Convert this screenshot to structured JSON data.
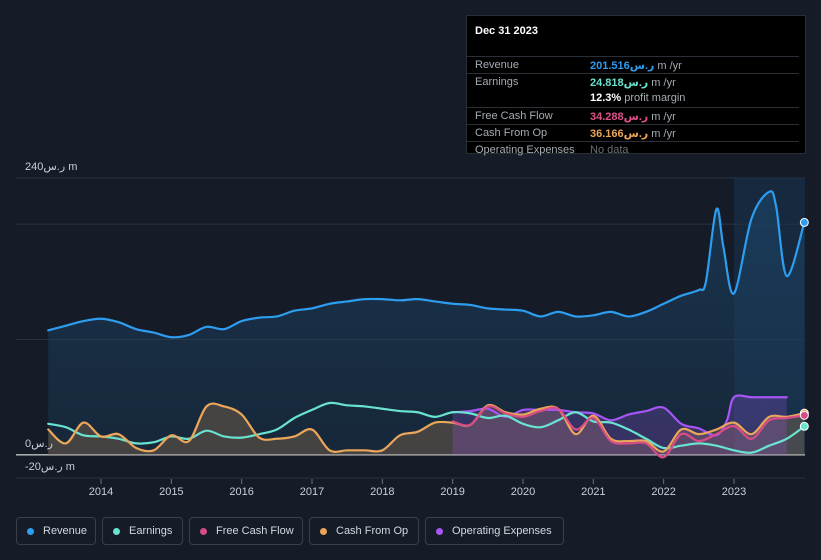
{
  "tooltip": {
    "date": "Dec 31 2023",
    "rows": [
      {
        "label": "Revenue",
        "value": "201.516ر.س",
        "unit": "m /yr",
        "color": "#2e9df0"
      },
      {
        "label": "Earnings",
        "value": "24.818ر.س",
        "unit": "m /yr",
        "color": "#69e3cf"
      },
      {
        "label": "",
        "value": "12.3%",
        "unit": "profit margin",
        "color": "#ffffff"
      },
      {
        "label": "Free Cash Flow",
        "value": "34.288ر.س",
        "unit": "m /yr",
        "color": "#e0508a"
      },
      {
        "label": "Cash From Op",
        "value": "36.166ر.س",
        "unit": "m /yr",
        "color": "#eba65a"
      },
      {
        "label": "Operating Expenses",
        "value": "No data",
        "unit": "",
        "color": "#6b7178"
      }
    ]
  },
  "legend": [
    {
      "label": "Revenue",
      "color": "#2e9df0"
    },
    {
      "label": "Earnings",
      "color": "#69e3cf"
    },
    {
      "label": "Free Cash Flow",
      "color": "#d94d86"
    },
    {
      "label": "Cash From Op",
      "color": "#eba65a"
    },
    {
      "label": "Operating Expenses",
      "color": "#a855f7"
    }
  ],
  "chart_data": {
    "type": "line",
    "title": "",
    "y_labels": {
      "top": "240ر.س m",
      "zero": "0ر.س",
      "bottom": "-20ر.س m"
    },
    "ylim": [
      -20,
      240
    ],
    "xlim": [
      2013.25,
      2024.0
    ],
    "x_ticks": [
      "2014",
      "2015",
      "2016",
      "2017",
      "2018",
      "2019",
      "2020",
      "2021",
      "2022",
      "2023"
    ],
    "forecast_start": 2023.0,
    "series": [
      {
        "name": "Revenue",
        "color": "#2e9df0",
        "fill": true,
        "from": 2013.25,
        "points": [
          [
            2013.25,
            108
          ],
          [
            2013.5,
            112
          ],
          [
            2013.75,
            116
          ],
          [
            2014.0,
            118
          ],
          [
            2014.25,
            115
          ],
          [
            2014.5,
            109
          ],
          [
            2014.75,
            106
          ],
          [
            2015.0,
            102
          ],
          [
            2015.25,
            104
          ],
          [
            2015.5,
            111
          ],
          [
            2015.75,
            109
          ],
          [
            2016.0,
            116
          ],
          [
            2016.25,
            119
          ],
          [
            2016.5,
            120
          ],
          [
            2016.75,
            125
          ],
          [
            2017.0,
            127
          ],
          [
            2017.25,
            131
          ],
          [
            2017.5,
            133
          ],
          [
            2017.75,
            135
          ],
          [
            2018.0,
            135
          ],
          [
            2018.25,
            134
          ],
          [
            2018.5,
            135
          ],
          [
            2018.75,
            133
          ],
          [
            2019.0,
            131
          ],
          [
            2019.25,
            130
          ],
          [
            2019.5,
            127
          ],
          [
            2019.75,
            126
          ],
          [
            2020.0,
            125
          ],
          [
            2020.25,
            120
          ],
          [
            2020.5,
            124
          ],
          [
            2020.75,
            120
          ],
          [
            2021.0,
            121
          ],
          [
            2021.25,
            124
          ],
          [
            2021.5,
            120
          ],
          [
            2021.75,
            124
          ],
          [
            2022.0,
            131
          ],
          [
            2022.25,
            138
          ],
          [
            2022.5,
            143
          ],
          [
            2022.6,
            150
          ],
          [
            2022.75,
            213
          ],
          [
            2022.85,
            180
          ],
          [
            2023.0,
            140
          ],
          [
            2023.25,
            205
          ],
          [
            2023.5,
            228
          ],
          [
            2023.6,
            215
          ],
          [
            2023.75,
            155
          ],
          [
            2024.0,
            201.5
          ]
        ]
      },
      {
        "name": "Earnings",
        "color": "#69e3cf",
        "fill": false,
        "from": 2013.25,
        "points": [
          [
            2013.25,
            27
          ],
          [
            2013.5,
            24
          ],
          [
            2013.75,
            17
          ],
          [
            2014.0,
            16
          ],
          [
            2014.25,
            14
          ],
          [
            2014.5,
            10
          ],
          [
            2014.75,
            11
          ],
          [
            2015.0,
            16
          ],
          [
            2015.25,
            14
          ],
          [
            2015.5,
            21
          ],
          [
            2015.75,
            16
          ],
          [
            2016.0,
            15
          ],
          [
            2016.25,
            18
          ],
          [
            2016.5,
            22
          ],
          [
            2016.75,
            32
          ],
          [
            2017.0,
            39
          ],
          [
            2017.25,
            45
          ],
          [
            2017.5,
            43
          ],
          [
            2017.75,
            42
          ],
          [
            2018.0,
            40
          ],
          [
            2018.25,
            38
          ],
          [
            2018.5,
            37
          ],
          [
            2018.75,
            33
          ],
          [
            2019.0,
            37
          ],
          [
            2019.25,
            36
          ],
          [
            2019.5,
            32
          ],
          [
            2019.75,
            34
          ],
          [
            2020.0,
            27
          ],
          [
            2020.25,
            24
          ],
          [
            2020.5,
            30
          ],
          [
            2020.75,
            37
          ],
          [
            2021.0,
            29
          ],
          [
            2021.25,
            28
          ],
          [
            2021.5,
            22
          ],
          [
            2021.75,
            14
          ],
          [
            2022.0,
            6
          ],
          [
            2022.25,
            8
          ],
          [
            2022.5,
            10
          ],
          [
            2022.75,
            8
          ],
          [
            2023.0,
            4
          ],
          [
            2023.25,
            2
          ],
          [
            2023.5,
            8
          ],
          [
            2023.75,
            14
          ],
          [
            2024.0,
            24.8
          ]
        ]
      },
      {
        "name": "Free Cash Flow",
        "color": "#d94d86",
        "fill": false,
        "from": 2019.0,
        "points": [
          [
            2019.0,
            29
          ],
          [
            2019.25,
            26
          ],
          [
            2019.5,
            42
          ],
          [
            2019.75,
            36
          ],
          [
            2020.0,
            33
          ],
          [
            2020.25,
            38
          ],
          [
            2020.5,
            40
          ],
          [
            2020.75,
            22
          ],
          [
            2021.0,
            32
          ],
          [
            2021.25,
            12
          ],
          [
            2021.5,
            10
          ],
          [
            2021.75,
            10
          ],
          [
            2022.0,
            -2
          ],
          [
            2022.25,
            18
          ],
          [
            2022.5,
            12
          ],
          [
            2022.75,
            18
          ],
          [
            2023.0,
            25
          ],
          [
            2023.25,
            14
          ],
          [
            2023.5,
            30
          ],
          [
            2023.75,
            32
          ],
          [
            2024.0,
            34.3
          ]
        ]
      },
      {
        "name": "Cash From Op",
        "color": "#eba65a",
        "fill": true,
        "from": 2013.25,
        "points": [
          [
            2013.25,
            22
          ],
          [
            2013.5,
            10
          ],
          [
            2013.75,
            28
          ],
          [
            2014.0,
            16
          ],
          [
            2014.25,
            18
          ],
          [
            2014.5,
            6
          ],
          [
            2014.75,
            4
          ],
          [
            2015.0,
            17
          ],
          [
            2015.25,
            12
          ],
          [
            2015.5,
            42
          ],
          [
            2015.75,
            42
          ],
          [
            2016.0,
            35
          ],
          [
            2016.25,
            15
          ],
          [
            2016.5,
            14
          ],
          [
            2016.75,
            16
          ],
          [
            2017.0,
            22
          ],
          [
            2017.25,
            4
          ],
          [
            2017.5,
            4
          ],
          [
            2017.75,
            4
          ],
          [
            2018.0,
            4
          ],
          [
            2018.25,
            17
          ],
          [
            2018.5,
            20
          ],
          [
            2018.75,
            28
          ],
          [
            2019.0,
            28
          ],
          [
            2019.25,
            26
          ],
          [
            2019.5,
            43
          ],
          [
            2019.75,
            37
          ],
          [
            2020.0,
            35
          ],
          [
            2020.25,
            40
          ],
          [
            2020.5,
            40
          ],
          [
            2020.75,
            18
          ],
          [
            2021.0,
            34
          ],
          [
            2021.25,
            14
          ],
          [
            2021.5,
            12
          ],
          [
            2021.75,
            12
          ],
          [
            2022.0,
            3
          ],
          [
            2022.25,
            22
          ],
          [
            2022.5,
            18
          ],
          [
            2022.75,
            22
          ],
          [
            2023.0,
            28
          ],
          [
            2023.25,
            18
          ],
          [
            2023.5,
            33
          ],
          [
            2023.75,
            33
          ],
          [
            2024.0,
            36.2
          ]
        ]
      },
      {
        "name": "Operating Expenses",
        "color": "#a855f7",
        "fill": true,
        "from": 2019.0,
        "points": [
          [
            2019.0,
            37
          ],
          [
            2019.25,
            38
          ],
          [
            2019.5,
            40
          ],
          [
            2019.75,
            33
          ],
          [
            2020.0,
            39
          ],
          [
            2020.25,
            39
          ],
          [
            2020.5,
            39
          ],
          [
            2020.75,
            37
          ],
          [
            2021.0,
            36
          ],
          [
            2021.25,
            30
          ],
          [
            2021.5,
            35
          ],
          [
            2021.75,
            38
          ],
          [
            2022.0,
            41
          ],
          [
            2022.25,
            27
          ],
          [
            2022.5,
            23
          ],
          [
            2022.75,
            17
          ],
          [
            2022.9,
            30
          ],
          [
            2023.0,
            50
          ],
          [
            2023.25,
            50
          ],
          [
            2023.5,
            50
          ],
          [
            2023.75,
            50
          ]
        ]
      }
    ]
  }
}
